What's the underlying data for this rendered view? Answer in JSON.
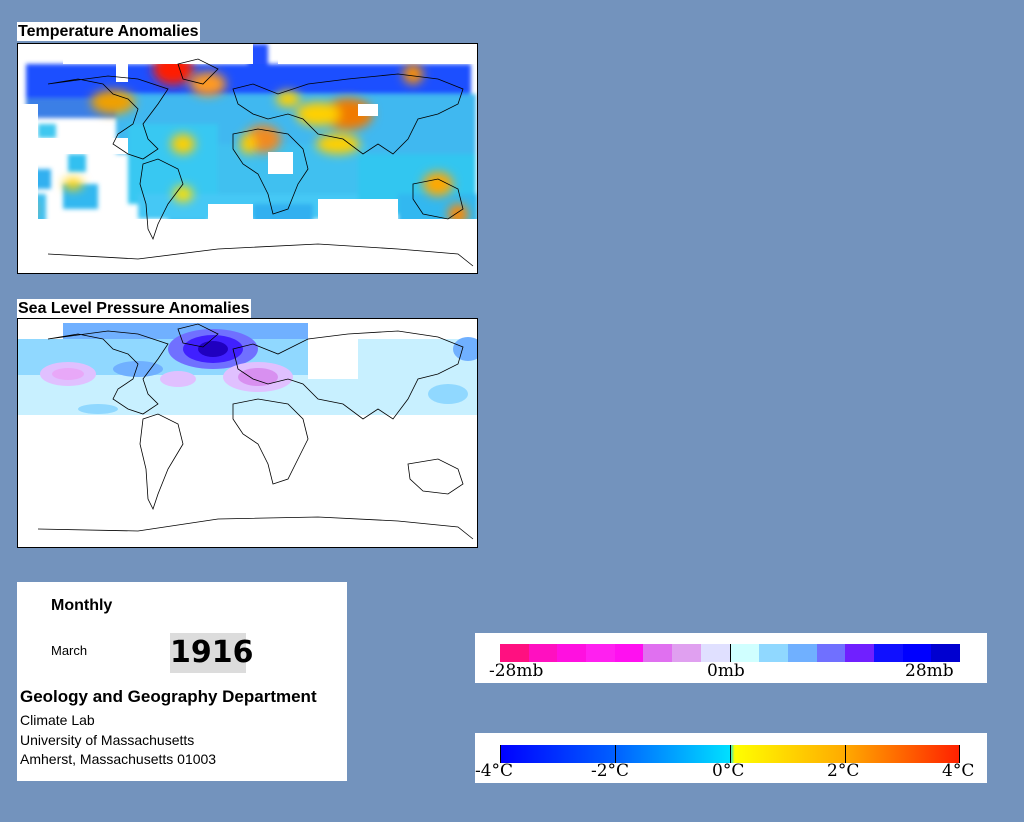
{
  "maps": {
    "temperature": {
      "title": "Temperature Anomalies"
    },
    "pressure": {
      "title": "Sea Level Pressure Anomalies"
    }
  },
  "info": {
    "period": "Monthly",
    "month": "March",
    "year": "1916",
    "department": "Geology and Geography Department",
    "lab": "Climate Lab",
    "university": "University of Massachusetts",
    "address": "Amherst, Massachusetts 01003"
  },
  "legend_pressure": {
    "labels": [
      "-28mb",
      "0mb",
      "28mb"
    ],
    "colors": [
      "#ff1080",
      "#ff10c0",
      "#ff10e0",
      "#ff20f0",
      "#ff10f0",
      "#e070f0",
      "#e0a0f0",
      "#e0e0ff",
      "#d0ffff",
      "#90d8ff",
      "#70b0ff",
      "#7070ff",
      "#7020ff",
      "#1010ff",
      "#0000ff",
      "#0000d0"
    ]
  },
  "legend_temperature": {
    "labels": [
      "-4°C",
      "-2°C",
      "0°C",
      "2°C",
      "4°C"
    ],
    "colors": {
      "cold": "#0000ff",
      "cool": "#00aaff",
      "neutral": "#00ffff",
      "warm": "#ffff00",
      "hot": "#ff0000"
    }
  }
}
